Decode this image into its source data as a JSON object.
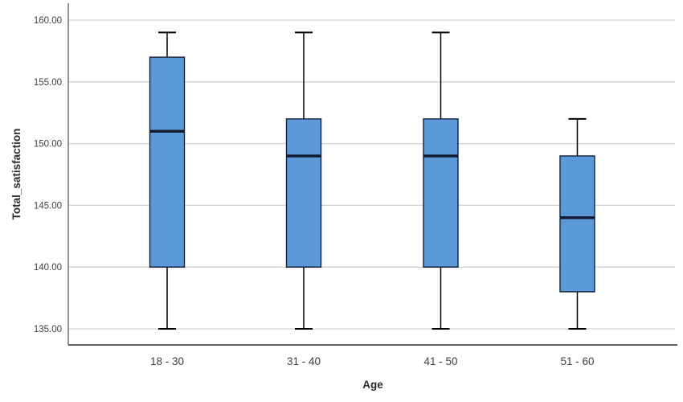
{
  "chart_data": {
    "type": "boxplot",
    "title": "",
    "xlabel": "Age",
    "ylabel": "Total_satisfaction",
    "categories": [
      "18 - 30",
      "31 - 40",
      "41 - 50",
      "51 - 60"
    ],
    "series": [
      {
        "category": "18 - 30",
        "min": 135,
        "q1": 140,
        "median": 151,
        "q3": 157,
        "max": 159
      },
      {
        "category": "31 - 40",
        "min": 135,
        "q1": 140,
        "median": 149,
        "q3": 152,
        "max": 159
      },
      {
        "category": "41 - 50",
        "min": 135,
        "q1": 140,
        "median": 149,
        "q3": 152,
        "max": 159
      },
      {
        "category": "51 - 60",
        "min": 135,
        "q1": 138,
        "median": 144,
        "q3": 149,
        "max": 152
      }
    ],
    "y_axis": {
      "min": 135,
      "max": 160,
      "tick_step": 5,
      "tick_labels": [
        "135.00",
        "140.00",
        "145.00",
        "150.00",
        "155.00",
        "160.00"
      ]
    },
    "grid": "horizontal",
    "legend": "none",
    "colors": {
      "box_fill": "#5b99d8",
      "box_stroke": "#17203a",
      "median": "#141c33",
      "whisker": "#000000",
      "gridline": "#d2d2d2",
      "axis_line": "#5a5a5a",
      "text": "#3f3f3f"
    }
  }
}
